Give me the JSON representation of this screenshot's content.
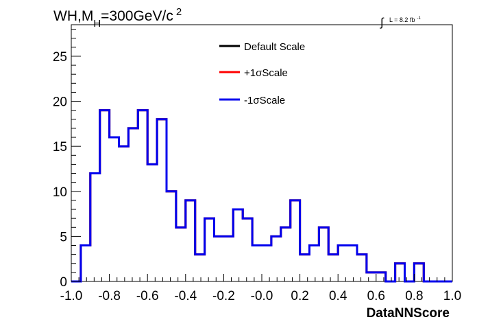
{
  "chart_data": {
    "type": "line",
    "title": "WH,M",
    "title_subscript": "H",
    "title_suffix": "=300GeV/c",
    "title_superscript": "2",
    "lumi_integral": "∫",
    "lumi_text": "L = 8.2 fb",
    "lumi_superscript": "-1",
    "xlabel": "DataNNScore",
    "ylabel": "",
    "xlim": [
      -1.0,
      1.0
    ],
    "ylim": [
      0,
      28.5
    ],
    "grid": false,
    "legend_placement": "top-center",
    "x_ticks": [
      -1.0,
      -0.8,
      -0.6,
      -0.4,
      -0.2,
      0.0,
      0.2,
      0.4,
      0.6,
      0.8,
      1.0
    ],
    "x_tick_labels": [
      "-1.0",
      "-0.8",
      "-0.6",
      "-0.4",
      "-0.2",
      "-0.0",
      "0.2",
      "0.4",
      "0.6",
      "0.8",
      "1.0"
    ],
    "y_ticks": [
      0,
      5,
      10,
      15,
      20,
      25
    ],
    "y_tick_labels": [
      "0",
      "5",
      "10",
      "15",
      "20",
      "25"
    ],
    "bin_edges_start": -1.0,
    "bin_width": 0.05,
    "series": [
      {
        "name": "Default Scale",
        "color": "#000000",
        "values": [
          0,
          4,
          12,
          19,
          16,
          15,
          17,
          19,
          13,
          18,
          10,
          6,
          9,
          3,
          7,
          5,
          5,
          8,
          7,
          4,
          4,
          5,
          6,
          9,
          3,
          4,
          6,
          3,
          4,
          4,
          3,
          1,
          1,
          0,
          2,
          0,
          2,
          0,
          0,
          0
        ]
      },
      {
        "name": "+1σScale",
        "color": "#ff0000",
        "values": [
          0,
          4,
          12,
          19,
          16,
          15,
          17,
          19,
          13,
          18,
          10,
          6,
          9,
          3,
          7,
          5,
          5,
          8,
          7,
          4,
          4,
          5,
          6,
          9,
          3,
          4,
          6,
          3,
          4,
          4,
          3,
          1,
          1,
          0,
          2,
          0,
          2,
          0,
          0,
          0
        ]
      },
      {
        "name": "-1σScale",
        "color": "#0000ee",
        "values": [
          0,
          4,
          12,
          19,
          16,
          15,
          17,
          19,
          13,
          18,
          10,
          6,
          9,
          3,
          7,
          5,
          5,
          8,
          7,
          4,
          4,
          5,
          6,
          9,
          3,
          4,
          6,
          3,
          4,
          4,
          3,
          1,
          1,
          0,
          2,
          0,
          2,
          0,
          0,
          0
        ]
      }
    ]
  }
}
